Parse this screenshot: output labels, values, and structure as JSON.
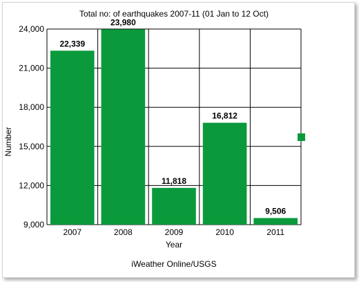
{
  "chart_data": {
    "type": "bar",
    "title": "Total no: of earthquakes 2007-11 (01 Jan to 12 Oct)",
    "xlabel": "Year",
    "ylabel": "Number",
    "categories": [
      "2007",
      "2008",
      "2009",
      "2010",
      "2011"
    ],
    "values": [
      22339,
      23980,
      11818,
      16812,
      9506
    ],
    "value_labels": [
      "22,339",
      "23,980",
      "11,818",
      "16,812",
      "9,506"
    ],
    "ylim": [
      9000,
      24000
    ],
    "yticks": [
      9000,
      12000,
      15000,
      18000,
      21000,
      24000
    ],
    "ytick_labels": [
      "9,000",
      "12,000",
      "15,000",
      "18,000",
      "21,000",
      "24,000"
    ],
    "grid": true,
    "bar_color": "#0a9a3c",
    "legend": {
      "placement": "right",
      "label": ""
    },
    "source": "iWeather Online/USGS"
  }
}
